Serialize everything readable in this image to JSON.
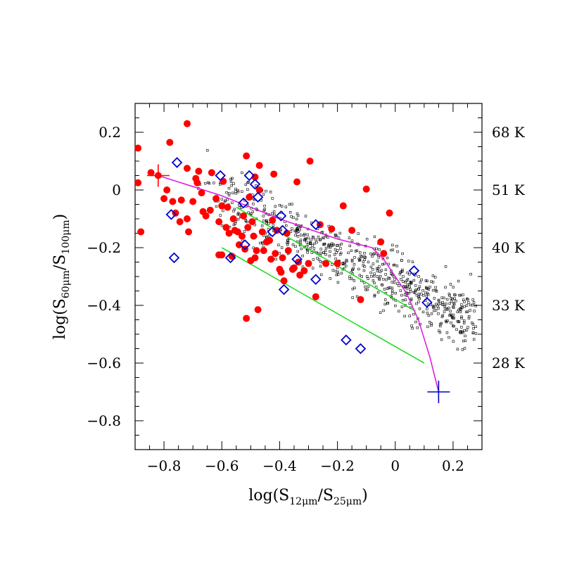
{
  "chart_data": {
    "type": "scatter",
    "xlabel": {
      "main": "log(S",
      "sub1": "12μm",
      "mid": "/S",
      "sub2": "25μm",
      "end": ")"
    },
    "ylabel": {
      "main": "log(S",
      "sub1": "60μm",
      "mid": "/S",
      "sub2": "100μm",
      "end": ")"
    },
    "xlim": [
      -0.9,
      0.3
    ],
    "ylim": [
      -0.9,
      0.3
    ],
    "x_ticks": [
      -0.8,
      -0.6,
      -0.4,
      -0.2,
      0,
      0.2
    ],
    "x_tick_labels": [
      "−0.8",
      "−0.6",
      "−0.4",
      "−0.2",
      "0",
      "0.2"
    ],
    "y_ticks": [
      0.2,
      0,
      -0.2,
      -0.4,
      -0.6,
      -0.8
    ],
    "y_tick_labels": [
      "0.2",
      "0",
      "−0.2",
      "−0.4",
      "−0.6",
      "−0.8"
    ],
    "right_axis_labels": [
      {
        "y": 0.2,
        "text": "68  K"
      },
      {
        "y": 0.0,
        "text": "51  K"
      },
      {
        "y": -0.2,
        "text": "40  K"
      },
      {
        "y": -0.4,
        "text": "33  K"
      },
      {
        "y": -0.6,
        "text": "28  K"
      }
    ],
    "grid": false,
    "legend": "none",
    "colors": {
      "red": "#ff0000",
      "blue": "#0000cc",
      "magenta": "#e020e0",
      "green": "#22dd22",
      "black": "#000000"
    },
    "series": [
      {
        "marker": "filled-circle",
        "color": "#ff0000",
        "points": [
          [
            -0.89,
            0.145
          ],
          [
            -0.89,
            0.025
          ],
          [
            -0.88,
            -0.145
          ],
          [
            -0.845,
            0.06
          ],
          [
            -0.82,
            0.05
          ],
          [
            -0.8,
            -0.03
          ],
          [
            -0.79,
            0.0
          ],
          [
            -0.78,
            0.165
          ],
          [
            -0.77,
            -0.04
          ],
          [
            -0.76,
            -0.08
          ],
          [
            -0.745,
            -0.11
          ],
          [
            -0.74,
            -0.035
          ],
          [
            -0.72,
            0.23
          ],
          [
            -0.72,
            0.075
          ],
          [
            -0.72,
            -0.1
          ],
          [
            -0.715,
            -0.145
          ],
          [
            -0.7,
            -0.04
          ],
          [
            -0.69,
            0.04
          ],
          [
            -0.685,
            0.025
          ],
          [
            -0.68,
            0.065
          ],
          [
            -0.67,
            -0.01
          ],
          [
            -0.665,
            -0.075
          ],
          [
            -0.655,
            -0.09
          ],
          [
            -0.64,
            -0.07
          ],
          [
            -0.635,
            0.06
          ],
          [
            -0.62,
            -0.03
          ],
          [
            -0.61,
            -0.11
          ],
          [
            -0.61,
            -0.225
          ],
          [
            -0.6,
            -0.055
          ],
          [
            -0.6,
            -0.225
          ],
          [
            -0.595,
            0.03
          ],
          [
            -0.585,
            -0.13
          ],
          [
            -0.58,
            -0.06
          ],
          [
            -0.575,
            -0.15
          ],
          [
            -0.565,
            -0.23
          ],
          [
            -0.56,
            -0.1
          ],
          [
            -0.555,
            -0.14
          ],
          [
            -0.545,
            -0.145
          ],
          [
            -0.54,
            -0.19
          ],
          [
            -0.53,
            -0.16
          ],
          [
            -0.525,
            -0.09
          ],
          [
            -0.52,
            -0.205
          ],
          [
            -0.515,
            0.118
          ],
          [
            -0.51,
            -0.13
          ],
          [
            -0.505,
            -0.025
          ],
          [
            -0.5,
            -0.245
          ],
          [
            -0.495,
            -0.11
          ],
          [
            -0.49,
            -0.16
          ],
          [
            -0.485,
            0.045
          ],
          [
            -0.485,
            -0.235
          ],
          [
            -0.48,
            -0.21
          ],
          [
            -0.475,
            -0.415
          ],
          [
            -0.47,
            0.085
          ],
          [
            -0.47,
            0.0
          ],
          [
            -0.46,
            -0.145
          ],
          [
            -0.455,
            -0.21
          ],
          [
            -0.445,
            -0.18
          ],
          [
            -0.435,
            -0.175
          ],
          [
            -0.43,
            -0.24
          ],
          [
            -0.425,
            -0.105
          ],
          [
            -0.42,
            0.055
          ],
          [
            -0.415,
            -0.22
          ],
          [
            -0.41,
            -0.14
          ],
          [
            -0.4,
            -0.275
          ],
          [
            -0.395,
            -0.285
          ],
          [
            -0.39,
            -0.235
          ],
          [
            -0.385,
            -0.315
          ],
          [
            -0.375,
            -0.15
          ],
          [
            -0.37,
            -0.21
          ],
          [
            -0.355,
            -0.275
          ],
          [
            -0.35,
            -0.27
          ],
          [
            -0.34,
            0.028
          ],
          [
            -0.335,
            -0.25
          ],
          [
            -0.33,
            -0.295
          ],
          [
            -0.315,
            -0.28
          ],
          [
            -0.3,
            -0.255
          ],
          [
            -0.295,
            0.1
          ],
          [
            -0.275,
            -0.37
          ],
          [
            -0.26,
            -0.12
          ],
          [
            -0.24,
            -0.255
          ],
          [
            -0.22,
            -0.135
          ],
          [
            -0.2,
            -0.255
          ],
          [
            -0.18,
            -0.055
          ],
          [
            -0.15,
            -0.14
          ],
          [
            -0.12,
            -0.38
          ],
          [
            -0.1,
            0.003
          ],
          [
            -0.05,
            -0.18
          ],
          [
            -0.04,
            -0.22
          ],
          [
            -0.02,
            -0.08
          ],
          [
            -0.515,
            -0.445
          ]
        ]
      },
      {
        "marker": "open-diamond",
        "color": "#0000cc",
        "points": [
          [
            -0.755,
            0.095
          ],
          [
            -0.775,
            -0.085
          ],
          [
            -0.765,
            -0.235
          ],
          [
            -0.605,
            0.05
          ],
          [
            -0.57,
            -0.235
          ],
          [
            -0.525,
            -0.045
          ],
          [
            -0.52,
            -0.19
          ],
          [
            -0.505,
            0.05
          ],
          [
            -0.485,
            0.02
          ],
          [
            -0.475,
            -0.025
          ],
          [
            -0.425,
            -0.145
          ],
          [
            -0.395,
            -0.09
          ],
          [
            -0.39,
            -0.14
          ],
          [
            -0.385,
            -0.345
          ],
          [
            -0.34,
            -0.24
          ],
          [
            -0.275,
            -0.12
          ],
          [
            -0.275,
            -0.31
          ],
          [
            -0.17,
            -0.52
          ],
          [
            -0.12,
            -0.55
          ],
          [
            0.065,
            -0.28
          ],
          [
            0.11,
            -0.39
          ]
        ]
      }
    ],
    "markers_cross": [
      {
        "x": -0.82,
        "y": 0.05,
        "color": "#ff0000"
      },
      {
        "x": 0.15,
        "y": -0.7,
        "color": "#0000cc"
      }
    ],
    "model_curve": {
      "color": "#e020e0",
      "points": [
        [
          -0.82,
          0.05
        ],
        [
          -0.6,
          -0.02
        ],
        [
          -0.4,
          -0.1
        ],
        [
          -0.2,
          -0.17
        ],
        [
          -0.08,
          -0.2
        ],
        [
          -0.04,
          -0.24
        ],
        [
          0.0,
          -0.3
        ],
        [
          0.04,
          -0.36
        ],
        [
          0.08,
          -0.45
        ],
        [
          0.12,
          -0.58
        ],
        [
          0.15,
          -0.7
        ]
      ]
    },
    "green_lines": [
      {
        "color": "#22dd22",
        "points": [
          [
            -0.55,
            -0.06
          ],
          [
            0.07,
            -0.42
          ]
        ]
      },
      {
        "color": "#22dd22",
        "points": [
          [
            -0.6,
            -0.2
          ],
          [
            0.1,
            -0.6
          ]
        ]
      }
    ],
    "background_scatter_note": "small open squares"
  }
}
